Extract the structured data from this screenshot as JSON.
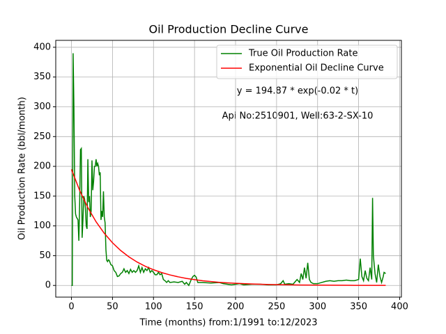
{
  "chart_data": {
    "type": "line",
    "title": "Oil Production Decline Curve",
    "x_label": "Time (months) from:1/1991 to:12/2023",
    "y_label": "Oil Production Rate (bbl/month)",
    "annotations": [
      "y = 194.87 * exp(-0.02 * t)",
      "Api No:2510901, Well:63-2-SX-10"
    ],
    "series": [
      {
        "name": "True Oil Production Rate",
        "color": "#008000",
        "x": [
          0,
          1,
          2,
          3,
          4,
          5,
          6,
          8,
          9,
          10,
          11,
          12,
          13,
          14,
          15,
          16,
          17,
          18,
          19,
          20,
          21,
          22,
          23,
          24,
          25,
          26,
          27,
          28,
          29,
          30,
          31,
          32,
          33,
          34,
          35,
          36,
          37,
          38,
          39,
          40,
          41,
          42,
          43,
          44,
          45,
          46,
          48,
          50,
          52,
          54,
          56,
          58,
          60,
          62,
          64,
          66,
          68,
          70,
          72,
          74,
          76,
          78,
          80,
          82,
          84,
          86,
          88,
          90,
          92,
          94,
          96,
          98,
          100,
          102,
          104,
          106,
          108,
          110,
          112,
          114,
          116,
          118,
          120,
          125,
          130,
          135,
          138,
          140,
          143,
          146,
          148,
          150,
          152,
          154,
          160,
          170,
          180,
          185,
          190,
          195,
          200,
          205,
          210,
          220,
          230,
          240,
          250,
          255,
          258,
          260,
          265,
          270,
          275,
          278,
          280,
          282,
          284,
          286,
          288,
          290,
          292,
          295,
          300,
          305,
          310,
          315,
          320,
          325,
          330,
          335,
          340,
          345,
          350,
          352,
          354,
          356,
          358,
          360,
          362,
          364,
          366,
          367,
          368,
          370,
          372,
          374,
          376,
          378,
          380,
          381,
          383
        ],
        "values": [
          0,
          0,
          390,
          300,
          150,
          120,
          115,
          110,
          75,
          140,
          228,
          230,
          80,
          110,
          150,
          145,
          130,
          100,
          95,
          212,
          140,
          150,
          115,
          125,
          210,
          160,
          175,
          200,
          200,
          212,
          200,
          205,
          200,
          185,
          190,
          110,
          125,
          115,
          158,
          115,
          105,
          60,
          42,
          40,
          43,
          42,
          35,
          33,
          25,
          22,
          15,
          16,
          20,
          22,
          28,
          22,
          25,
          20,
          27,
          22,
          25,
          22,
          25,
          33,
          22,
          30,
          22,
          28,
          25,
          30,
          22,
          25,
          22,
          18,
          18,
          22,
          18,
          20,
          10,
          8,
          5,
          8,
          5,
          6,
          5,
          7,
          2,
          5,
          0,
          10,
          15,
          17,
          14,
          5,
          5,
          4,
          5,
          3,
          2,
          1,
          2,
          3,
          1,
          2,
          2,
          1,
          1,
          3,
          8,
          2,
          3,
          2,
          10,
          5,
          20,
          10,
          30,
          12,
          38,
          10,
          5,
          3,
          3,
          5,
          7,
          8,
          7,
          8,
          8,
          9,
          8,
          8,
          10,
          45,
          15,
          8,
          25,
          12,
          8,
          30,
          10,
          147,
          50,
          20,
          5,
          35,
          15,
          5,
          15,
          22,
          20
        ]
      },
      {
        "name": "Exponential Oil Decline Curve",
        "color": "#ff0000",
        "x": [
          0,
          10,
          20,
          30,
          40,
          50,
          60,
          70,
          80,
          90,
          100,
          110,
          120,
          130,
          140,
          150,
          160,
          170,
          180,
          190,
          200,
          220,
          240,
          260,
          280,
          300,
          340,
          383
        ],
        "values": [
          194.9,
          159.5,
          130.6,
          106.9,
          87.6,
          71.7,
          58.7,
          48.0,
          39.3,
          32.2,
          26.4,
          21.6,
          17.7,
          14.5,
          11.8,
          9.7,
          7.9,
          6.5,
          5.3,
          4.4,
          3.6,
          2.4,
          1.6,
          1.1,
          0.7,
          0.5,
          0.2,
          0.1
        ]
      }
    ],
    "xlim": [
      -19.15,
      402.15
    ],
    "ylim": [
      -19.6,
      411.6
    ],
    "xticks": [
      0,
      50,
      100,
      150,
      200,
      250,
      300,
      350,
      400
    ],
    "yticks": [
      0,
      50,
      100,
      150,
      200,
      250,
      300,
      350,
      400
    ],
    "grid": true,
    "legend": "upper right"
  }
}
